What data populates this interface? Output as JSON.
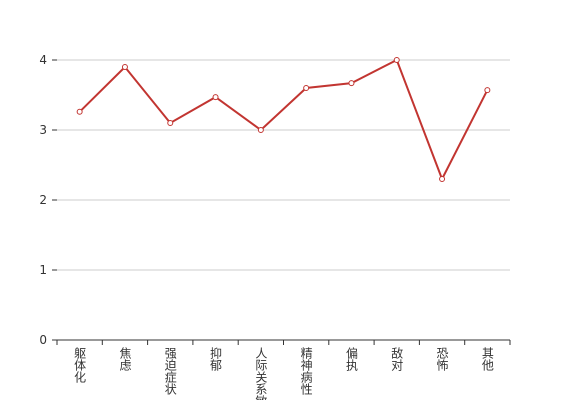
{
  "chart_data": {
    "type": "line",
    "categories": [
      "躯体化",
      "焦虑",
      "强迫症状",
      "抑郁",
      "人际关系敏感",
      "精神病性",
      "偏执",
      "敌对",
      "恐怖",
      "其他"
    ],
    "series": [
      {
        "color": "#c23531",
        "values": [
          3.26,
          3.9,
          3.1,
          3.47,
          3.0,
          3.6,
          3.67,
          4.0,
          2.3,
          3.57
        ]
      }
    ],
    "ylim": [
      0,
      4
    ],
    "yticks": [
      0,
      1,
      2,
      3,
      4
    ],
    "grid": true
  }
}
